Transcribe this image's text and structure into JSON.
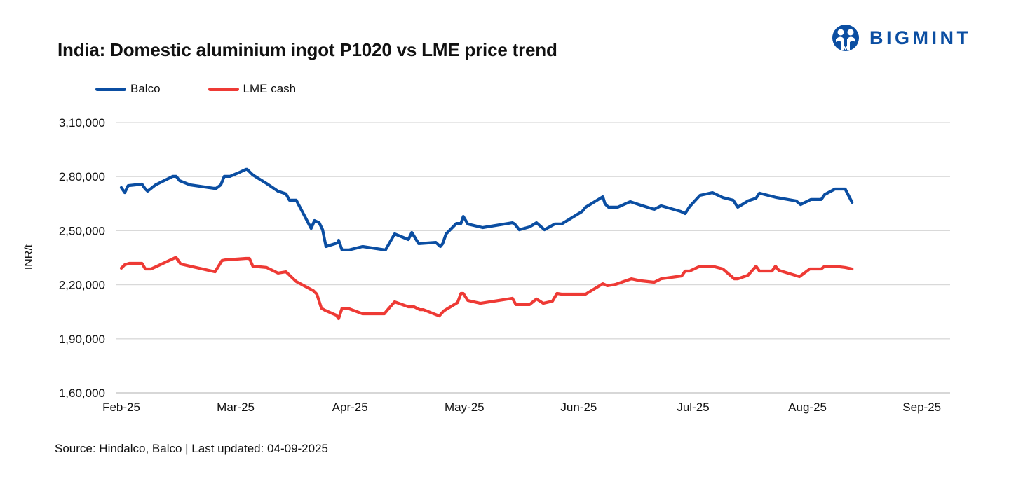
{
  "header": {
    "title": "India: Domestic aluminium ingot P1020 vs LME price trend",
    "logo_text": "BIGMINT",
    "logo_color": "#0b4ea2"
  },
  "footer": {
    "source": "Source: Hindalco, Balco | Last updated: 04-09-2025"
  },
  "chart_data": {
    "type": "line",
    "title": "India: Domestic aluminium ingot P1020 vs LME price trend",
    "xlabel": "",
    "ylabel": "INR/t",
    "x_unit": "months since Feb-25",
    "x_ticks": [
      "Feb-25",
      "Mar-25",
      "Apr-25",
      "May-25",
      "Jun-25",
      "Jul-25",
      "Aug-25",
      "Sep-25"
    ],
    "xlim": [
      0,
      7
    ],
    "ylim": [
      160000,
      310000
    ],
    "y_ticks": [
      160000,
      190000,
      220000,
      250000,
      280000,
      310000
    ],
    "y_tick_labels": [
      "1,60,000",
      "1,90,000",
      "2,20,000",
      "2,50,000",
      "2,80,000",
      "3,10,000"
    ],
    "grid": true,
    "legend_position": "top-left",
    "series": [
      {
        "name": "Balco",
        "color": "#0b4ea2",
        "points": [
          [
            0.0,
            273900
          ],
          [
            0.03,
            271100
          ],
          [
            0.06,
            275000
          ],
          [
            0.18,
            275800
          ],
          [
            0.21,
            273100
          ],
          [
            0.23,
            271900
          ],
          [
            0.3,
            275400
          ],
          [
            0.45,
            280100
          ],
          [
            0.48,
            280100
          ],
          [
            0.51,
            277700
          ],
          [
            0.6,
            275400
          ],
          [
            0.81,
            273500
          ],
          [
            0.83,
            273500
          ],
          [
            0.87,
            275400
          ],
          [
            0.9,
            280100
          ],
          [
            0.95,
            280100
          ],
          [
            1.02,
            282000
          ],
          [
            1.09,
            284000
          ],
          [
            1.1,
            284000
          ],
          [
            1.15,
            280900
          ],
          [
            1.27,
            276200
          ],
          [
            1.37,
            271900
          ],
          [
            1.44,
            270400
          ],
          [
            1.47,
            266900
          ],
          [
            1.53,
            266900
          ],
          [
            1.66,
            251300
          ],
          [
            1.69,
            255600
          ],
          [
            1.73,
            254400
          ],
          [
            1.76,
            250500
          ],
          [
            1.79,
            241200
          ],
          [
            1.89,
            243200
          ],
          [
            1.9,
            244700
          ],
          [
            1.93,
            239300
          ],
          [
            1.99,
            239300
          ],
          [
            2.11,
            241200
          ],
          [
            2.31,
            239300
          ],
          [
            2.39,
            248200
          ],
          [
            2.51,
            245100
          ],
          [
            2.54,
            249000
          ],
          [
            2.6,
            242800
          ],
          [
            2.75,
            243500
          ],
          [
            2.79,
            241200
          ],
          [
            2.81,
            242800
          ],
          [
            2.84,
            248200
          ],
          [
            2.93,
            254000
          ],
          [
            2.97,
            254000
          ],
          [
            2.99,
            257900
          ],
          [
            3.03,
            253700
          ],
          [
            3.16,
            251700
          ],
          [
            3.42,
            254400
          ],
          [
            3.44,
            253700
          ],
          [
            3.48,
            250500
          ],
          [
            3.57,
            252100
          ],
          [
            3.63,
            254400
          ],
          [
            3.7,
            250500
          ],
          [
            3.79,
            253700
          ],
          [
            3.85,
            253700
          ],
          [
            4.03,
            260700
          ],
          [
            4.06,
            263000
          ],
          [
            4.21,
            268800
          ],
          [
            4.23,
            264900
          ],
          [
            4.26,
            263000
          ],
          [
            4.34,
            263000
          ],
          [
            4.45,
            266100
          ],
          [
            4.54,
            264200
          ],
          [
            4.66,
            261800
          ],
          [
            4.72,
            263800
          ],
          [
            4.89,
            260700
          ],
          [
            4.93,
            259500
          ],
          [
            4.97,
            263400
          ],
          [
            5.06,
            269600
          ],
          [
            5.17,
            271100
          ],
          [
            5.26,
            268400
          ],
          [
            5.35,
            266900
          ],
          [
            5.39,
            263000
          ],
          [
            5.48,
            266500
          ],
          [
            5.55,
            268000
          ],
          [
            5.58,
            270800
          ],
          [
            5.73,
            268400
          ],
          [
            5.9,
            266500
          ],
          [
            5.94,
            264500
          ],
          [
            6.03,
            267300
          ],
          [
            6.12,
            267300
          ],
          [
            6.15,
            270000
          ],
          [
            6.24,
            273100
          ],
          [
            6.33,
            273100
          ],
          [
            6.39,
            265700
          ]
        ]
      },
      {
        "name": "LME cash",
        "color": "#ee3a35",
        "points": [
          [
            0.0,
            229200
          ],
          [
            0.03,
            231100
          ],
          [
            0.07,
            231900
          ],
          [
            0.18,
            231900
          ],
          [
            0.21,
            228800
          ],
          [
            0.26,
            228800
          ],
          [
            0.3,
            229900
          ],
          [
            0.47,
            235000
          ],
          [
            0.48,
            235000
          ],
          [
            0.52,
            231500
          ],
          [
            0.82,
            227200
          ],
          [
            0.88,
            233400
          ],
          [
            0.91,
            233800
          ],
          [
            1.09,
            234600
          ],
          [
            1.12,
            234600
          ],
          [
            1.15,
            230300
          ],
          [
            1.27,
            229600
          ],
          [
            1.37,
            226500
          ],
          [
            1.44,
            227200
          ],
          [
            1.53,
            221800
          ],
          [
            1.62,
            218700
          ],
          [
            1.68,
            216700
          ],
          [
            1.71,
            214800
          ],
          [
            1.75,
            207000
          ],
          [
            1.78,
            205900
          ],
          [
            1.88,
            203100
          ],
          [
            1.9,
            201200
          ],
          [
            1.93,
            207000
          ],
          [
            1.98,
            207000
          ],
          [
            2.11,
            203900
          ],
          [
            2.3,
            203900
          ],
          [
            2.34,
            207000
          ],
          [
            2.39,
            210500
          ],
          [
            2.51,
            207800
          ],
          [
            2.56,
            207800
          ],
          [
            2.61,
            206200
          ],
          [
            2.64,
            206200
          ],
          [
            2.78,
            202700
          ],
          [
            2.82,
            205500
          ],
          [
            2.94,
            210100
          ],
          [
            2.97,
            215200
          ],
          [
            2.99,
            215200
          ],
          [
            3.03,
            211300
          ],
          [
            3.14,
            209700
          ],
          [
            3.42,
            212500
          ],
          [
            3.45,
            209000
          ],
          [
            3.57,
            209000
          ],
          [
            3.63,
            212100
          ],
          [
            3.69,
            209700
          ],
          [
            3.77,
            210900
          ],
          [
            3.81,
            215200
          ],
          [
            3.85,
            214800
          ],
          [
            4.06,
            214800
          ],
          [
            4.21,
            220600
          ],
          [
            4.25,
            219500
          ],
          [
            4.32,
            220200
          ],
          [
            4.46,
            223300
          ],
          [
            4.54,
            222200
          ],
          [
            4.66,
            221400
          ],
          [
            4.72,
            223300
          ],
          [
            4.9,
            224900
          ],
          [
            4.93,
            227600
          ],
          [
            4.97,
            227600
          ],
          [
            5.06,
            230300
          ],
          [
            5.17,
            230300
          ],
          [
            5.26,
            228800
          ],
          [
            5.36,
            223300
          ],
          [
            5.39,
            223300
          ],
          [
            5.48,
            225300
          ],
          [
            5.55,
            230300
          ],
          [
            5.58,
            227600
          ],
          [
            5.69,
            227600
          ],
          [
            5.72,
            230300
          ],
          [
            5.75,
            228000
          ],
          [
            5.93,
            224500
          ],
          [
            6.02,
            228800
          ],
          [
            6.12,
            228800
          ],
          [
            6.15,
            230300
          ],
          [
            6.24,
            230300
          ],
          [
            6.33,
            229600
          ],
          [
            6.39,
            228800
          ]
        ]
      }
    ]
  }
}
